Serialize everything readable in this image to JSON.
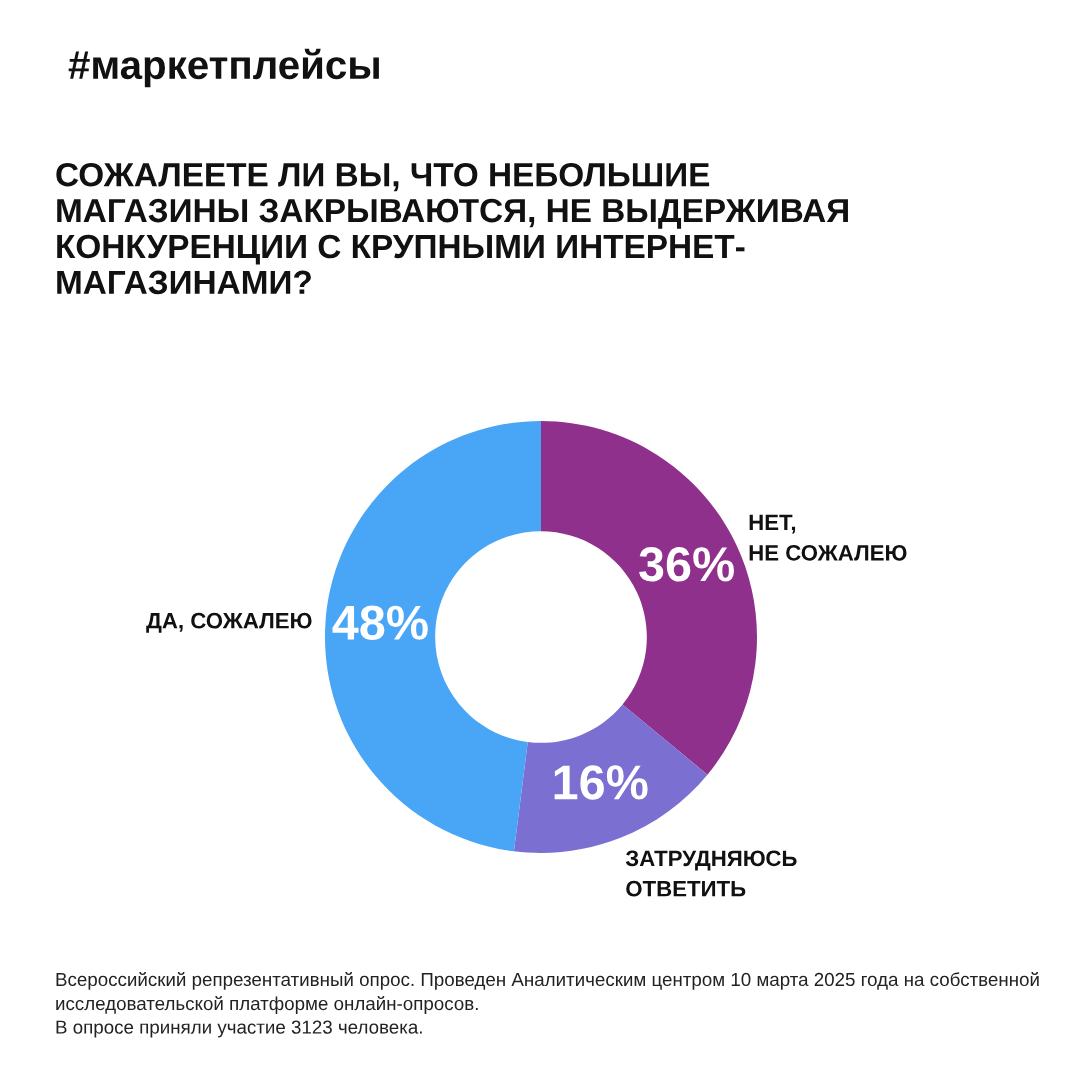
{
  "chart_data": {
    "type": "donut",
    "subtitle": "#маркетплейсы",
    "title": "СОЖАЛЕЕТЕ ЛИ ВЫ, ЧТО НЕБОЛЬШИЕ\nМАГАЗИНЫ ЗАКРЫВАЮТСЯ, НЕ ВЫДЕРЖИВАЯ\nКОНКУРЕНЦИИ С КРУПНЫМИ ИНТЕРНЕТ-\nМАГАЗИНАМИ?",
    "categories": [
      "НЕТ,\nНЕ СОЖАЛЕЮ",
      "ЗАТРУДНЯЮСЬ\nОТВЕТИТЬ",
      "ДА, СОЖАЛЕЮ"
    ],
    "values": [
      36,
      16,
      48
    ],
    "value_labels": [
      "36%",
      "16%",
      "48%"
    ],
    "colors": [
      "#8e308c",
      "#7b70d1",
      "#49a5f5"
    ],
    "annotations": [
      "Всероссийский репрезентативный опрос. Проведен Аналитическим центром 10 марта 2025 года на собственной исследовательской платформе онлайн-опросов.\nВ опросе приняли участие 3123 человека."
    ]
  }
}
